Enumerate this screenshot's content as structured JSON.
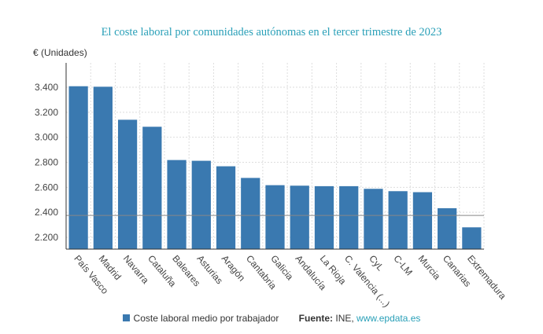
{
  "chart_data": {
    "type": "bar",
    "title": "El coste laboral por comunidades autónomas en el tercer trimestre de 2023",
    "ylabel": "€ (Unidades)",
    "ylim": [
      2100,
      3520
    ],
    "yticks": [
      2200,
      2400,
      2600,
      2800,
      3000,
      3200,
      3400
    ],
    "ytick_labels": [
      "2.200",
      "2.400",
      "2.600",
      "2.800",
      "3.000",
      "3.200",
      "3.400"
    ],
    "grid": true,
    "categories": [
      "País Vasco",
      "Madrid",
      "Navarra",
      "Cataluña",
      "Baleares",
      "Asturias",
      "Aragón",
      "Cantabria",
      "Galicia",
      "Andalucía",
      "La Rioja",
      "C. Valencia (...)",
      "CyL",
      "C-LM",
      "Murcia",
      "Canarias",
      "Extremadura"
    ],
    "series": [
      {
        "name": "Coste laboral medio por trabajador",
        "values": [
          3408,
          3404,
          3140,
          3084,
          2818,
          2812,
          2768,
          2675,
          2617,
          2613,
          2609,
          2609,
          2588,
          2569,
          2561,
          2433,
          2280
        ]
      }
    ],
    "reference_line": 2375,
    "legend_position": "bottom",
    "colors": {
      "bar": "#3a79b0",
      "title": "#2aa0b8",
      "reference_line": "#888888"
    }
  },
  "legend": {
    "series": "Coste laboral medio por trabajador",
    "source_label": "Fuente:",
    "source_text": "INE,",
    "source_link": "www.epdata.es"
  }
}
